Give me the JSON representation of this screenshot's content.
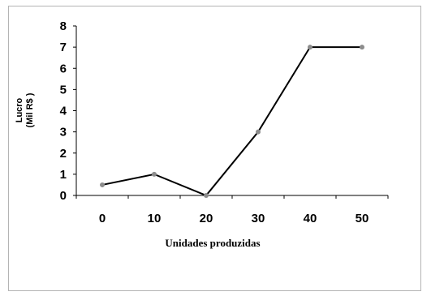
{
  "chart_data": {
    "type": "line",
    "categories": [
      "0",
      "10",
      "20",
      "30",
      "40",
      "50"
    ],
    "values": [
      0.5,
      1,
      0,
      3,
      7,
      7
    ],
    "xlabel": "Unidades produzidas",
    "ylabel_line1": "Lucro",
    "ylabel_line2": "(Mil R$ )",
    "ylim": [
      0,
      8
    ],
    "yticks": [
      "0",
      "1",
      "2",
      "3",
      "4",
      "5",
      "6",
      "7",
      "8"
    ],
    "grid": false,
    "legend": "none",
    "line_color": "#000000",
    "marker_color": "#8c8c8c"
  }
}
